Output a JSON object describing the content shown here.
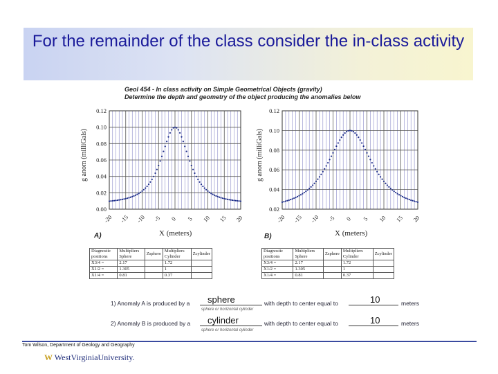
{
  "slide": {
    "title": "For the remainder of the class consider the in-class activity",
    "footer": "Tom Wilson, Department of Geology and Geography",
    "logo_text": "WestVirginiaUniversity.",
    "colors": {
      "title": "#1a1a9a",
      "band_left": "#c9d3f2",
      "band_right": "#f8f5cf",
      "footer_rule": "#3a4aa0",
      "plot_dots": "#1a2a88"
    }
  },
  "worksheet": {
    "header_line1": "Geol 454 - In class activity on Simple Geometrical Objects (gravity)",
    "header_line2": "Determine the depth and geometry of the object producing the anomalies below",
    "table_headers": [
      "Diagnostic positions",
      "Multipliers Sphere",
      "Zsphere",
      "Multipliers Cylinder",
      "Zcylinder"
    ],
    "table_rows": [
      [
        "X3/4 =",
        "2.17",
        "",
        "1.72",
        ""
      ],
      [
        "X1/2 =",
        "1.305",
        "",
        "1",
        ""
      ],
      [
        "X1/4 =",
        "0.81",
        "",
        "0.37",
        ""
      ]
    ],
    "question_a_prefix": "1) Anomaly A is produced by a",
    "question_b_prefix": "2) Anomaly B is produced by a",
    "question_suffix": "with depth to center equal to",
    "units": "meters",
    "choice_hint": "sphere or horizontal cylinder",
    "answer_a_type": "sphere",
    "answer_a_depth": "10",
    "answer_b_type": "cylinder",
    "answer_b_depth": "10"
  },
  "chart_data": [
    {
      "type": "scatter",
      "panel": "A)",
      "title": "",
      "xlabel": "X (meters)",
      "ylabel": "g anom (milliGals)",
      "xlim": [
        -20,
        20
      ],
      "ylim": [
        0,
        0.12
      ],
      "x_ticks": [
        -20,
        -15,
        -10,
        -5,
        0,
        5,
        10,
        15,
        20
      ],
      "y_ticks": [
        "0.00",
        "0.02",
        "0.04",
        "0.06",
        "0.08",
        "0.10",
        "0.12"
      ],
      "grid": true,
      "curve": {
        "peak_x": 0,
        "peak_y": 0.1,
        "half_width_x": 6.5,
        "tail_y_at_20": 0.007
      }
    },
    {
      "type": "scatter",
      "panel": "B)",
      "title": "",
      "xlabel": "X (meters)",
      "ylabel": "g anom (milliGals)",
      "xlim": [
        -20,
        20
      ],
      "ylim": [
        0.02,
        0.12
      ],
      "x_ticks": [
        -20,
        -15,
        -10,
        -5,
        0,
        5,
        10,
        15,
        20
      ],
      "y_ticks": [
        "0.02",
        "0.04",
        "0.06",
        "0.08",
        "0.10",
        "0.12"
      ],
      "grid": true,
      "curve": {
        "peak_x": 0,
        "peak_y": 0.1,
        "half_width_x": 10,
        "tail_y_at_20": 0.02
      }
    }
  ]
}
